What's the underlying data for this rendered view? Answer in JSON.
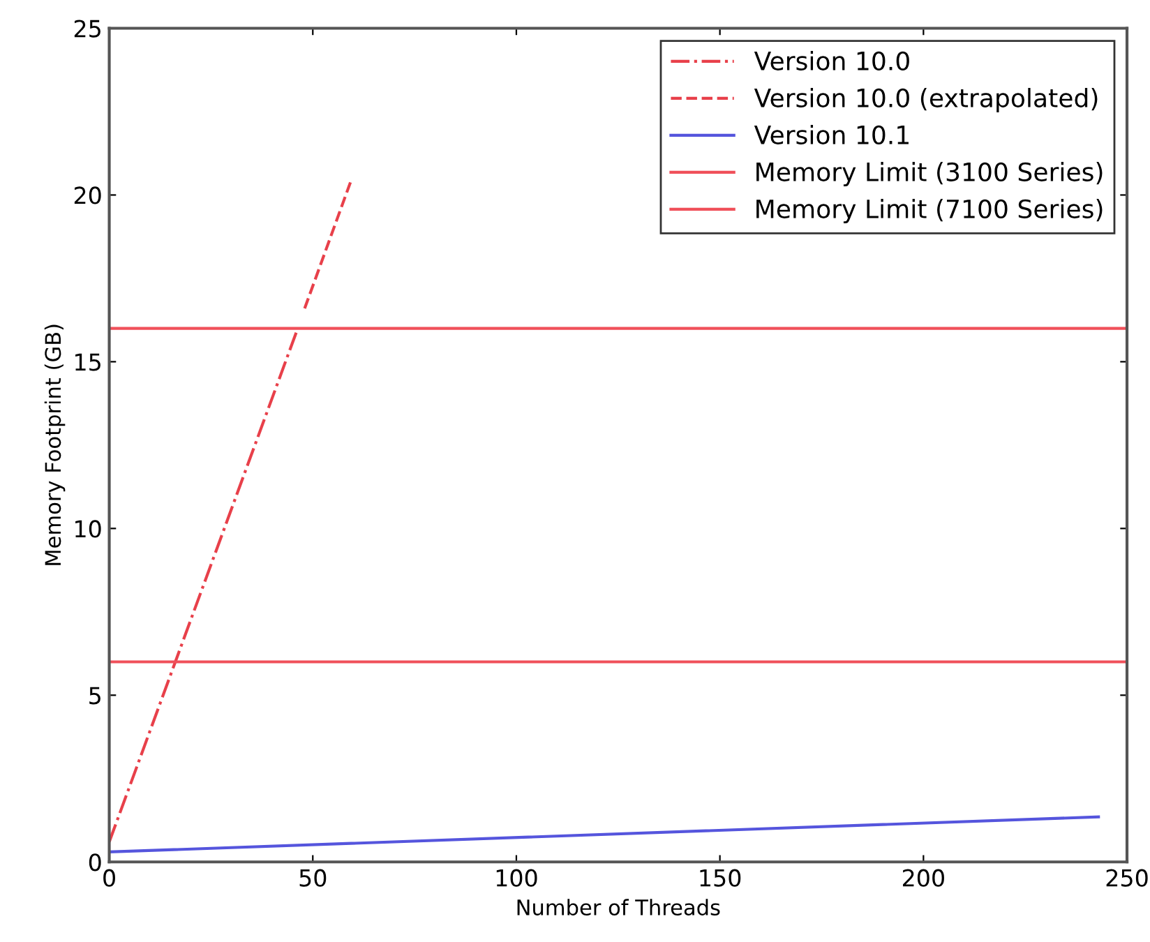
{
  "chart_data": {
    "type": "line",
    "xlabel": "Number of Threads",
    "ylabel": "Memory Footprint (GB)",
    "xlim": [
      0,
      250
    ],
    "xticks": [
      0,
      50,
      100,
      150,
      200,
      250
    ],
    "ylim": [
      0,
      25
    ],
    "yticks": [
      0,
      5,
      10,
      15,
      20,
      25
    ],
    "grid": false,
    "legend": "top right",
    "series": [
      {
        "name": "Version 10.0",
        "color": "#e8404a",
        "x": [
          0,
          46
        ],
        "values": [
          0.6,
          15.9
        ],
        "line_style": "dashdot"
      },
      {
        "name": "Version 10.0 (extrapolated)",
        "color": "#e8404a",
        "x": [
          48,
          59.6
        ],
        "values": [
          16.6,
          20.5
        ],
        "line_style": "dashed"
      },
      {
        "name": "Version 10.1",
        "color": "#5555dd",
        "x": [
          0,
          243
        ],
        "values": [
          0.3,
          1.35
        ],
        "line_style": "solid"
      }
    ],
    "ref_lines": [
      {
        "axis": "y",
        "value": 6,
        "label": "Memory Limit (3100 Series)",
        "color": "#f0505a",
        "line_style": "solid"
      },
      {
        "axis": "y",
        "value": 16,
        "label": "Memory Limit (7100 Series)",
        "color": "#f0505a",
        "line_style": "solid"
      }
    ]
  }
}
